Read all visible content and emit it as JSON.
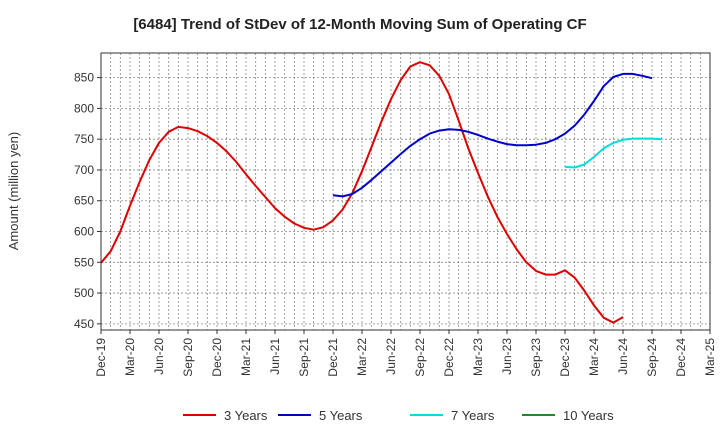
{
  "chart_data": {
    "type": "line",
    "title": "[6484]  Trend of StDev of 12-Month Moving Sum of Operating CF",
    "xlabel": "",
    "ylabel": "Amount (million yen)",
    "ylim": [
      440,
      890
    ],
    "yticks": [
      450,
      500,
      550,
      600,
      650,
      700,
      750,
      800,
      850
    ],
    "x_tick_labels": [
      "Dec-19",
      "Mar-20",
      "Jun-20",
      "Sep-20",
      "Dec-20",
      "Mar-21",
      "Jun-21",
      "Sep-21",
      "Dec-21",
      "Mar-22",
      "Jun-22",
      "Sep-22",
      "Dec-22",
      "Mar-23",
      "Jun-23",
      "Sep-23",
      "Dec-23",
      "Mar-24",
      "Jun-24",
      "Sep-24",
      "Dec-24",
      "Mar-25"
    ],
    "x_range_months": [
      0,
      63
    ],
    "grid": true,
    "legend_position": "bottom",
    "series": [
      {
        "name": "3 Years",
        "color": "#dd0000",
        "start_month": 0,
        "values": [
          549,
          568,
          600,
          642,
          681,
          716,
          744,
          762,
          770,
          768,
          763,
          755,
          744,
          730,
          713,
          693,
          674,
          656,
          638,
          624,
          613,
          606,
          603,
          607,
          618,
          636,
          662,
          698,
          738,
          778,
          815,
          846,
          868,
          875,
          870,
          853,
          823,
          780,
          735,
          695,
          657,
          624,
          596,
          571,
          550,
          536,
          530,
          530,
          537,
          525,
          504,
          480,
          460,
          452,
          461
        ]
      },
      {
        "name": "5 Years",
        "color": "#0000cc",
        "start_month": 24,
        "values": [
          659,
          657,
          661,
          671,
          684,
          698,
          712,
          726,
          739,
          750,
          759,
          764,
          766,
          765,
          762,
          757,
          751,
          746,
          742,
          740,
          740,
          741,
          744,
          750,
          759,
          772,
          790,
          812,
          836,
          851,
          856,
          856,
          853,
          849
        ]
      },
      {
        "name": "7 Years",
        "color": "#00dddd",
        "start_month": 48,
        "values": [
          705,
          704,
          709,
          721,
          735,
          744,
          749,
          751,
          751,
          751,
          750
        ]
      },
      {
        "name": "10 Years",
        "color": "#228b22",
        "start_month": 0,
        "values": []
      }
    ]
  }
}
